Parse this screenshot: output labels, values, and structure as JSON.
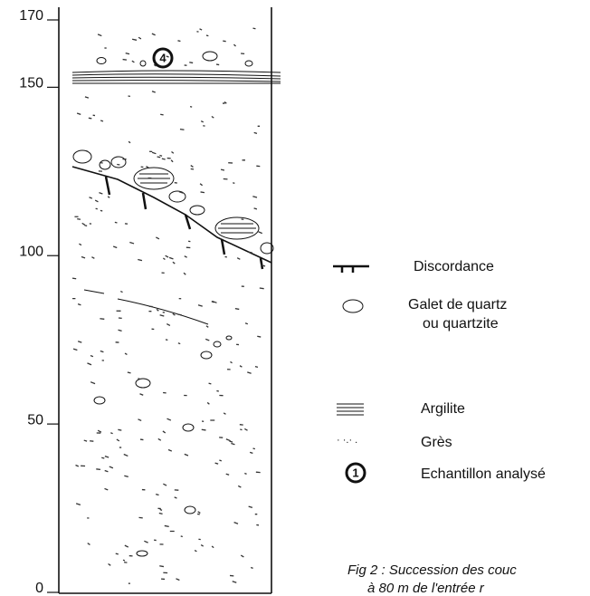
{
  "axis": {
    "ticks": [
      170,
      150,
      100,
      50,
      0
    ]
  },
  "sample": {
    "label": "4"
  },
  "legend": {
    "items": [
      {
        "label": "Discordance"
      },
      {
        "label": "Galet de quartz",
        "label2": "ou quartzite"
      },
      {
        "label": "Argilite"
      },
      {
        "label": "Grès"
      },
      {
        "label": "Echantillon analysé",
        "symbol": "1"
      }
    ]
  },
  "caption": [
    "Fig 2 : Succession des couc",
    "à 80 m de l'entrée r"
  ]
}
